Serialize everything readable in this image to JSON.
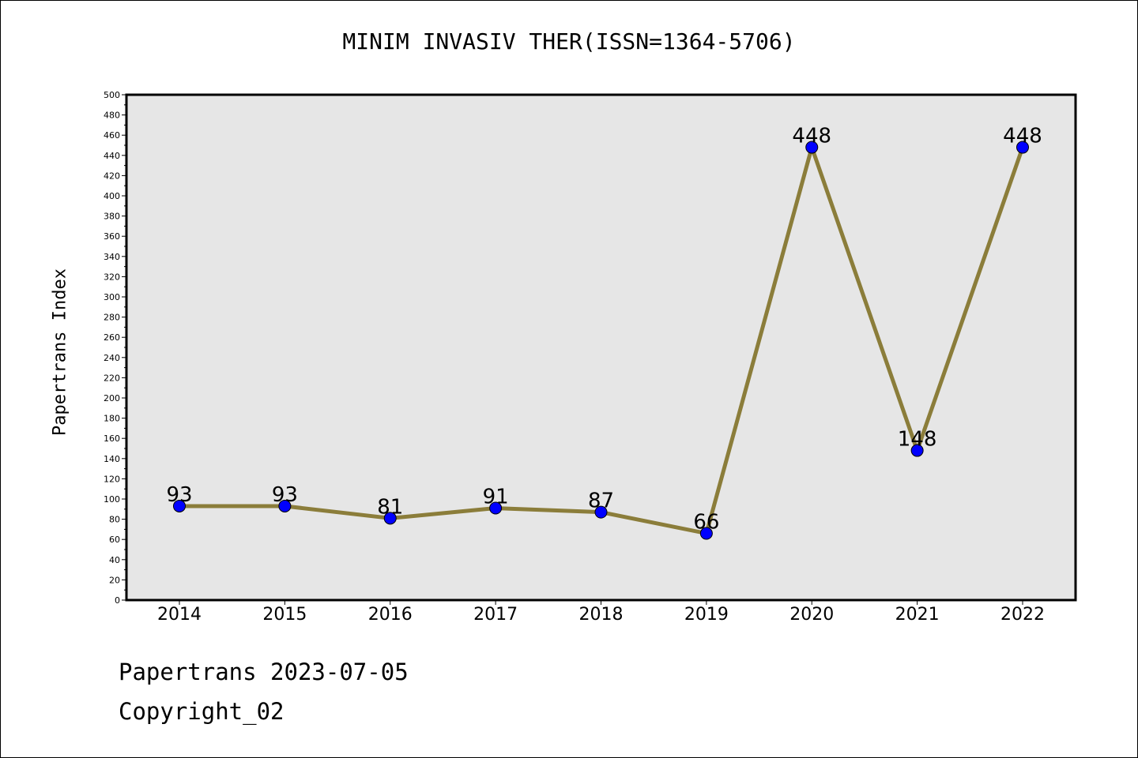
{
  "title": "MINIM INVASIV THER(ISSN=1364-5706)",
  "footer": {
    "date_line": "Papertrans 2023-07-05",
    "copyright": "Copyright_02"
  },
  "chart_data": {
    "type": "line",
    "title": "MINIM INVASIV THER(ISSN=1364-5706)",
    "xlabel": "",
    "ylabel": "Papertrans Index",
    "categories": [
      "2014",
      "2015",
      "2016",
      "2017",
      "2018",
      "2019",
      "2020",
      "2021",
      "2022"
    ],
    "series": [
      {
        "values": [
          93,
          93,
          81,
          91,
          87,
          66,
          448,
          148,
          448
        ],
        "line_color": "#8b7d3a",
        "marker_color": "#0000ff"
      }
    ],
    "data_labels": [
      "93",
      "93",
      "81",
      "91",
      "87",
      "66",
      "448",
      "148",
      "448"
    ],
    "ylim": [
      0,
      500
    ],
    "yticks": [
      0,
      20,
      40,
      60,
      80,
      100,
      120,
      140,
      160,
      180,
      200,
      220,
      240,
      260,
      280,
      300,
      320,
      340,
      360,
      380,
      400,
      420,
      440,
      460,
      480,
      500
    ],
    "grid": false,
    "plot_background": "#e6e6e6"
  }
}
